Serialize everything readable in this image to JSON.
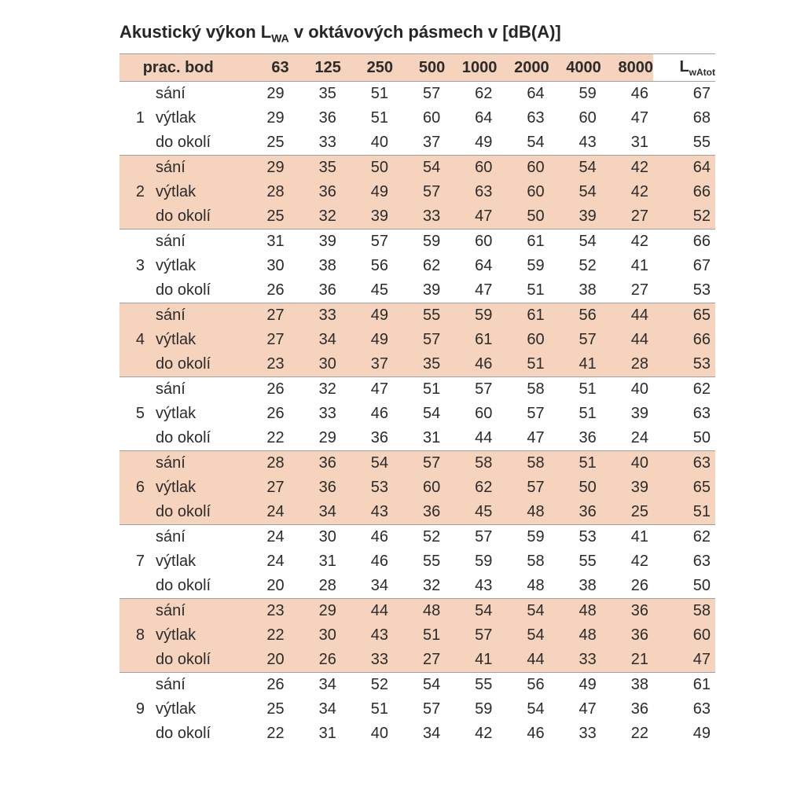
{
  "title_prefix": "Akustický výkon L",
  "title_sub": "WA",
  "title_suffix": " v oktávových pásmech v [dB(A)]",
  "colors": {
    "shade_bg": "#f6d3bd",
    "border": "#a0a0a0",
    "text": "#2b2b2b",
    "bg": "#ffffff"
  },
  "fontsize": {
    "title": 22,
    "body": 20
  },
  "header": {
    "prac_bod": "prac. bod",
    "cols": [
      "63",
      "125",
      "250",
      "500",
      "1000",
      "2000",
      "4000",
      "8000"
    ],
    "tot_prefix": "L",
    "tot_sub": "wAtot"
  },
  "row_labels": [
    "sání",
    "výtlak",
    "do okolí"
  ],
  "groups": [
    {
      "n": "1",
      "shade": false,
      "rows": [
        [
          29,
          35,
          51,
          57,
          62,
          64,
          59,
          46,
          67
        ],
        [
          29,
          36,
          51,
          60,
          64,
          63,
          60,
          47,
          68
        ],
        [
          25,
          33,
          40,
          37,
          49,
          54,
          43,
          31,
          55
        ]
      ]
    },
    {
      "n": "2",
      "shade": true,
      "rows": [
        [
          29,
          35,
          50,
          54,
          60,
          60,
          54,
          42,
          64
        ],
        [
          28,
          36,
          49,
          57,
          63,
          60,
          54,
          42,
          66
        ],
        [
          25,
          32,
          39,
          33,
          47,
          50,
          39,
          27,
          52
        ]
      ]
    },
    {
      "n": "3",
      "shade": false,
      "rows": [
        [
          31,
          39,
          57,
          59,
          60,
          61,
          54,
          42,
          66
        ],
        [
          30,
          38,
          56,
          62,
          64,
          59,
          52,
          41,
          67
        ],
        [
          26,
          36,
          45,
          39,
          47,
          51,
          38,
          27,
          53
        ]
      ]
    },
    {
      "n": "4",
      "shade": true,
      "rows": [
        [
          27,
          33,
          49,
          55,
          59,
          61,
          56,
          44,
          65
        ],
        [
          27,
          34,
          49,
          57,
          61,
          60,
          57,
          44,
          66
        ],
        [
          23,
          30,
          37,
          35,
          46,
          51,
          41,
          28,
          53
        ]
      ]
    },
    {
      "n": "5",
      "shade": false,
      "rows": [
        [
          26,
          32,
          47,
          51,
          57,
          58,
          51,
          40,
          62
        ],
        [
          26,
          33,
          46,
          54,
          60,
          57,
          51,
          39,
          63
        ],
        [
          22,
          29,
          36,
          31,
          44,
          47,
          36,
          24,
          50
        ]
      ]
    },
    {
      "n": "6",
      "shade": true,
      "rows": [
        [
          28,
          36,
          54,
          57,
          58,
          58,
          51,
          40,
          63
        ],
        [
          27,
          36,
          53,
          60,
          62,
          57,
          50,
          39,
          65
        ],
        [
          24,
          34,
          43,
          36,
          45,
          48,
          36,
          25,
          51
        ]
      ]
    },
    {
      "n": "7",
      "shade": false,
      "rows": [
        [
          24,
          30,
          46,
          52,
          57,
          59,
          53,
          41,
          62
        ],
        [
          24,
          31,
          46,
          55,
          59,
          58,
          55,
          42,
          63
        ],
        [
          20,
          28,
          34,
          32,
          43,
          48,
          38,
          26,
          50
        ]
      ]
    },
    {
      "n": "8",
      "shade": true,
      "rows": [
        [
          23,
          29,
          44,
          48,
          54,
          54,
          48,
          36,
          58
        ],
        [
          22,
          30,
          43,
          51,
          57,
          54,
          48,
          36,
          60
        ],
        [
          20,
          26,
          33,
          27,
          41,
          44,
          33,
          21,
          47
        ]
      ]
    },
    {
      "n": "9",
      "shade": false,
      "rows": [
        [
          26,
          34,
          52,
          54,
          55,
          56,
          49,
          38,
          61
        ],
        [
          25,
          34,
          51,
          57,
          59,
          54,
          47,
          36,
          63
        ],
        [
          22,
          31,
          40,
          34,
          42,
          46,
          33,
          22,
          49
        ]
      ]
    }
  ]
}
